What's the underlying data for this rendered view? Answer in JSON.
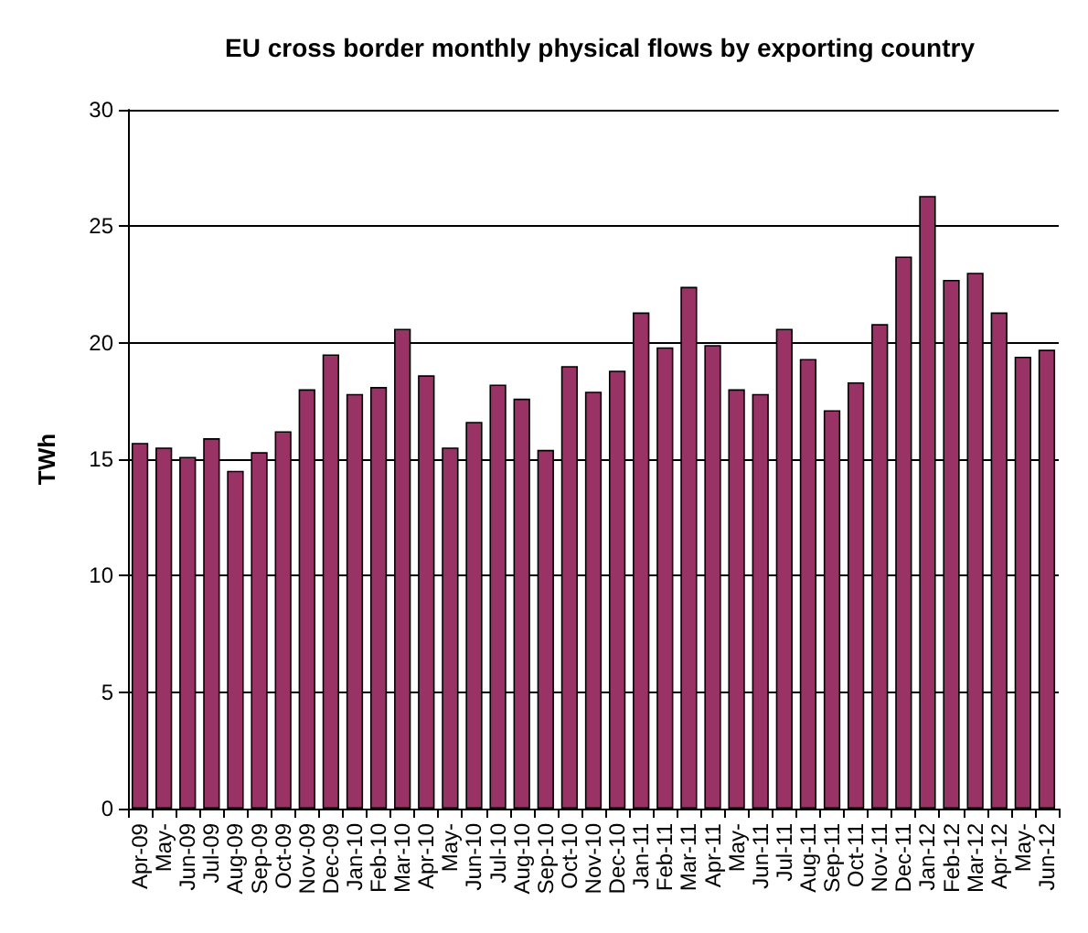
{
  "chart_data": {
    "type": "bar",
    "title": "EU cross border monthly physical flows by exporting country",
    "ylabel": "TWh",
    "categories": [
      "Apr-09",
      "May-",
      "Jun-09",
      "Jul-09",
      "Aug-09",
      "Sep-09",
      "Oct-09",
      "Nov-09",
      "Dec-09",
      "Jan-10",
      "Feb-10",
      "Mar-10",
      "Apr-10",
      "May-",
      "Jun-10",
      "Jul-10",
      "Aug-10",
      "Sep-10",
      "Oct-10",
      "Nov-10",
      "Dec-10",
      "Jan-11",
      "Feb-11",
      "Mar-11",
      "Apr-11",
      "May-",
      "Jun-11",
      "Jul-11",
      "Aug-11",
      "Sep-11",
      "Oct-11",
      "Nov-11",
      "Dec-11",
      "Jan-12",
      "Feb-12",
      "Mar-12",
      "Apr-12",
      "May-",
      "Jun-12"
    ],
    "values": [
      15.7,
      15.5,
      15.1,
      15.9,
      14.5,
      15.3,
      16.2,
      18.0,
      19.5,
      17.8,
      18.1,
      20.6,
      18.6,
      15.5,
      16.6,
      18.2,
      17.6,
      15.4,
      19.0,
      17.9,
      18.8,
      21.3,
      19.8,
      22.4,
      19.9,
      18.0,
      17.8,
      20.6,
      19.3,
      17.1,
      18.3,
      20.8,
      23.7,
      26.3,
      22.7,
      23.0,
      21.3,
      19.4,
      19.7
    ],
    "color": "#993366",
    "ylim": [
      0,
      30
    ],
    "yticks": [
      0,
      5,
      10,
      15,
      20,
      25,
      30
    ],
    "grid": "y"
  }
}
